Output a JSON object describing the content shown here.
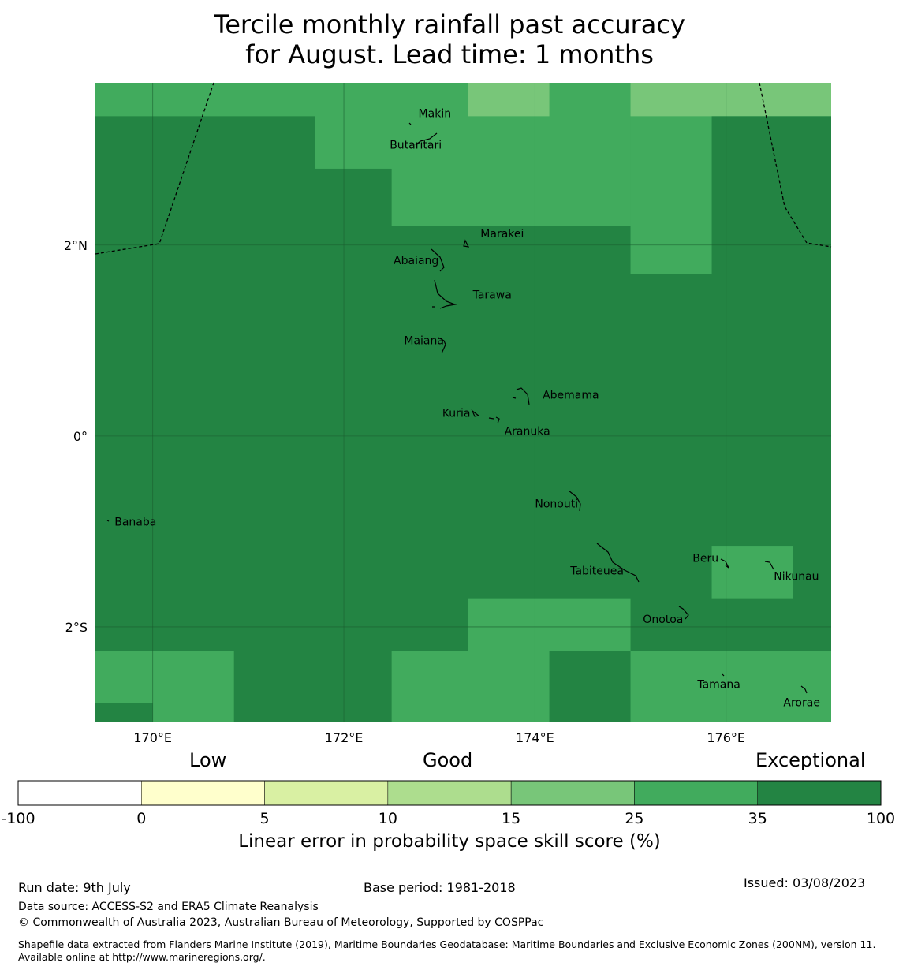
{
  "title": {
    "line1": "Tercile monthly rainfall past accuracy",
    "line2": "for August. Lead time: 1 months"
  },
  "map": {
    "lon_range": [
      169.4,
      177.1
    ],
    "lat_range": [
      -3.0,
      3.7
    ],
    "x_ticks": [
      {
        "value": 170,
        "label": "170°E"
      },
      {
        "value": 172,
        "label": "172°E"
      },
      {
        "value": 174,
        "label": "174°E"
      },
      {
        "value": 176,
        "label": "176°E"
      }
    ],
    "y_ticks": [
      {
        "value": 2,
        "label": "2°N"
      },
      {
        "value": 0,
        "label": "0°"
      },
      {
        "value": -2,
        "label": "2°S"
      }
    ],
    "colors": {
      "exceptional": "#238443",
      "good_high": "#41ab5d",
      "good_mid": "#78c679",
      "grid": "#1a5c2e"
    },
    "cells": [
      {
        "lon": [
          169.4,
          175.0
        ],
        "lat": [
          2.2,
          3.7
        ],
        "color": "#41ab5d"
      },
      {
        "lon": [
          175.0,
          177.1
        ],
        "lat": [
          1.7,
          3.7
        ],
        "color": "#41ab5d"
      },
      {
        "lon": [
          173.3,
          174.15
        ],
        "lat": [
          3.35,
          3.7
        ],
        "color": "#78c679"
      },
      {
        "lon": [
          175.0,
          177.1
        ],
        "lat": [
          3.35,
          3.7
        ],
        "color": "#78c679"
      },
      {
        "lon": [
          169.4,
          171.7
        ],
        "lat": [
          2.2,
          3.35
        ],
        "color": "#238443"
      },
      {
        "lon": [
          171.7,
          172.5
        ],
        "lat": [
          2.2,
          2.8
        ],
        "color": "#238443"
      },
      {
        "lon": [
          175.85,
          177.1
        ],
        "lat": [
          1.7,
          3.35
        ],
        "color": "#238443"
      },
      {
        "lon": [
          175.85,
          176.7
        ],
        "lat": [
          -1.7,
          -1.15
        ],
        "color": "#41ab5d"
      },
      {
        "lon": [
          173.3,
          175.0
        ],
        "lat": [
          -3.0,
          -1.7
        ],
        "color": "#41ab5d"
      },
      {
        "lon": [
          169.4,
          170.85
        ],
        "lat": [
          -3.0,
          -2.25
        ],
        "color": "#41ab5d"
      },
      {
        "lon": [
          169.4,
          170.0
        ],
        "lat": [
          -3.0,
          -2.8
        ],
        "color": "#238443"
      },
      {
        "lon": [
          172.5,
          173.3
        ],
        "lat": [
          -3.0,
          -2.25
        ],
        "color": "#41ab5d"
      },
      {
        "lon": [
          174.15,
          175.0
        ],
        "lat": [
          -3.0,
          -2.25
        ],
        "color": "#238443"
      },
      {
        "lon": [
          175.0,
          177.1
        ],
        "lat": [
          -3.0,
          -2.25
        ],
        "color": "#41ab5d"
      }
    ],
    "places": [
      {
        "name": "Makin",
        "lon": 172.78,
        "lat": 3.32,
        "lon_label": 172.78,
        "lat_label": 3.34
      },
      {
        "name": "Butaritari",
        "lon": 172.78,
        "lat": 3.08,
        "lon_label": 172.48,
        "lat_label": 3.01
      },
      {
        "name": "Marakei",
        "lon": 173.28,
        "lat": 2.0,
        "lon_label": 173.43,
        "lat_label": 2.08
      },
      {
        "name": "Abaiang",
        "lon": 172.98,
        "lat": 1.85,
        "lon_label": 172.52,
        "lat_label": 1.8
      },
      {
        "name": "Tarawa",
        "lon": 173.1,
        "lat": 1.38,
        "lon_label": 173.35,
        "lat_label": 1.44
      },
      {
        "name": "Maiana",
        "lon": 173.02,
        "lat": 0.93,
        "lon_label": 172.63,
        "lat_label": 0.96
      },
      {
        "name": "Abemama",
        "lon": 173.85,
        "lat": 0.4,
        "lon_label": 174.08,
        "lat_label": 0.39
      },
      {
        "name": "Kuria",
        "lon": 173.4,
        "lat": 0.22,
        "lon_label": 173.03,
        "lat_label": 0.2
      },
      {
        "name": "Aranuka",
        "lon": 173.62,
        "lat": 0.16,
        "lon_label": 173.68,
        "lat_label": 0.01
      },
      {
        "name": "Nonouti",
        "lon": 174.42,
        "lat": -0.67,
        "lon_label": 174.0,
        "lat_label": -0.75
      },
      {
        "name": "Banaba",
        "lon": 169.53,
        "lat": -0.88,
        "lon_label": 169.6,
        "lat_label": -0.94
      },
      {
        "name": "Tabiteuea",
        "lon": 174.8,
        "lat": -1.3,
        "lon_label": 174.37,
        "lat_label": -1.45
      },
      {
        "name": "Beru",
        "lon": 176.0,
        "lat": -1.33,
        "lon_label": 175.65,
        "lat_label": -1.32
      },
      {
        "name": "Nikunau",
        "lon": 176.45,
        "lat": -1.36,
        "lon_label": 176.5,
        "lat_label": -1.51
      },
      {
        "name": "Onotoa",
        "lon": 175.57,
        "lat": -1.8,
        "lon_label": 175.13,
        "lat_label": -1.96
      },
      {
        "name": "Tamana",
        "lon": 175.98,
        "lat": -2.5,
        "lon_label": 175.7,
        "lat_label": -2.64
      },
      {
        "name": "Arorae",
        "lon": 176.82,
        "lat": -2.64,
        "lon_label": 176.6,
        "lat_label": -2.83
      }
    ]
  },
  "colorbar": {
    "categories": [
      "Low",
      "Good",
      "Exceptional"
    ],
    "bins": [
      {
        "from": "-100",
        "to": "0",
        "color": "#ffffff"
      },
      {
        "from": "0",
        "to": "5",
        "color": "#ffffcc"
      },
      {
        "from": "5",
        "to": "10",
        "color": "#d9f0a3"
      },
      {
        "from": "10",
        "to": "15",
        "color": "#addd8e"
      },
      {
        "from": "15",
        "to": "25",
        "color": "#78c679"
      },
      {
        "from": "25",
        "to": "35",
        "color": "#41ab5d"
      },
      {
        "from": "35",
        "to": "100",
        "color": "#238443"
      }
    ],
    "tick_labels": [
      "-100",
      "0",
      "5",
      "10",
      "15",
      "25",
      "35",
      "100"
    ],
    "label": "Linear error in probability space skill score (%)"
  },
  "footer": {
    "run_date": "Run date: 9th July",
    "base_period": "Base period: 1981-2018",
    "issued": "Issued: 03/08/2023",
    "data_source": "Data source: ACCESS-S2 and ERA5 Climate Reanalysis",
    "copyright": "© Commonwealth of Australia 2023, Australian Bureau of Meteorology, Supported by COSPPac",
    "shapefile": "Shapefile data extracted from Flanders Marine Institute (2019), Maritime Boundaries Geodatabase: Maritime Boundaries and Exclusive Economic Zones (200NM), version 11. Available online at http://www.marineregions.org/."
  }
}
